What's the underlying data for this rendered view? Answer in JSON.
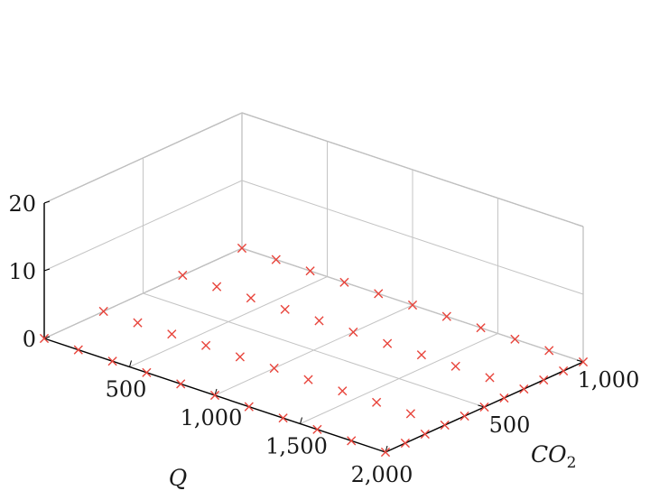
{
  "chart_data": {
    "type": "scatter",
    "title": "",
    "xlabel": "Q",
    "ylabel": "CO2",
    "ylabel_main": "CO",
    "ylabel_sub": "2",
    "zlabel": "",
    "xlim": [
      0,
      2000
    ],
    "ylim": [
      0,
      1000
    ],
    "zlim": [
      0,
      20
    ],
    "xticks": [
      "500",
      "1,000",
      "1,500",
      "2,000"
    ],
    "xtick_values": [
      500,
      1000,
      1500,
      2000
    ],
    "yticks": [
      "500",
      "1,000"
    ],
    "ytick_values": [
      500,
      1000
    ],
    "zticks": [
      "0",
      "10",
      "20"
    ],
    "ztick_values": [
      0,
      10,
      20
    ],
    "marker_color": "#e8453c",
    "grid": true,
    "series": [
      {
        "marker": "x",
        "points": [
          [
            0,
            0,
            0
          ],
          [
            200,
            0,
            0
          ],
          [
            400,
            0,
            0
          ],
          [
            600,
            0,
            0
          ],
          [
            800,
            0,
            0
          ],
          [
            1000,
            0,
            0
          ],
          [
            1200,
            0,
            0
          ],
          [
            1400,
            0,
            0
          ],
          [
            1600,
            0,
            0
          ],
          [
            1800,
            0,
            0
          ],
          [
            2000,
            0,
            0
          ],
          [
            2000,
            100,
            0
          ],
          [
            2000,
            200,
            0
          ],
          [
            2000,
            300,
            0
          ],
          [
            2000,
            400,
            0
          ],
          [
            2000,
            500,
            0
          ],
          [
            2000,
            600,
            0
          ],
          [
            2000,
            700,
            0
          ],
          [
            2000,
            800,
            0
          ],
          [
            2000,
            900,
            0
          ],
          [
            2000,
            1000,
            0
          ],
          [
            1800,
            1000,
            0
          ],
          [
            1600,
            1000,
            0
          ],
          [
            1400,
            1000,
            0
          ],
          [
            1200,
            1000,
            0
          ],
          [
            1000,
            1000,
            0
          ],
          [
            800,
            1000,
            0
          ],
          [
            600,
            1000,
            0
          ],
          [
            400,
            1000,
            0
          ],
          [
            200,
            1000,
            0
          ],
          [
            0,
            1000,
            0
          ],
          [
            0,
            300,
            0
          ],
          [
            0,
            700,
            0
          ],
          [
            200,
            300,
            0
          ],
          [
            400,
            300,
            0
          ],
          [
            600,
            300,
            0
          ],
          [
            800,
            300,
            0
          ],
          [
            1000,
            300,
            0
          ],
          [
            1200,
            300,
            0
          ],
          [
            1400,
            300,
            0
          ],
          [
            1600,
            300,
            0
          ],
          [
            1800,
            300,
            0
          ],
          [
            200,
            700,
            0
          ],
          [
            400,
            700,
            0
          ],
          [
            600,
            700,
            0
          ],
          [
            800,
            700,
            0
          ],
          [
            1000,
            700,
            0
          ],
          [
            1200,
            700,
            0
          ],
          [
            1400,
            700,
            0
          ],
          [
            1600,
            700,
            0
          ],
          [
            1800,
            700,
            0
          ]
        ]
      }
    ]
  }
}
